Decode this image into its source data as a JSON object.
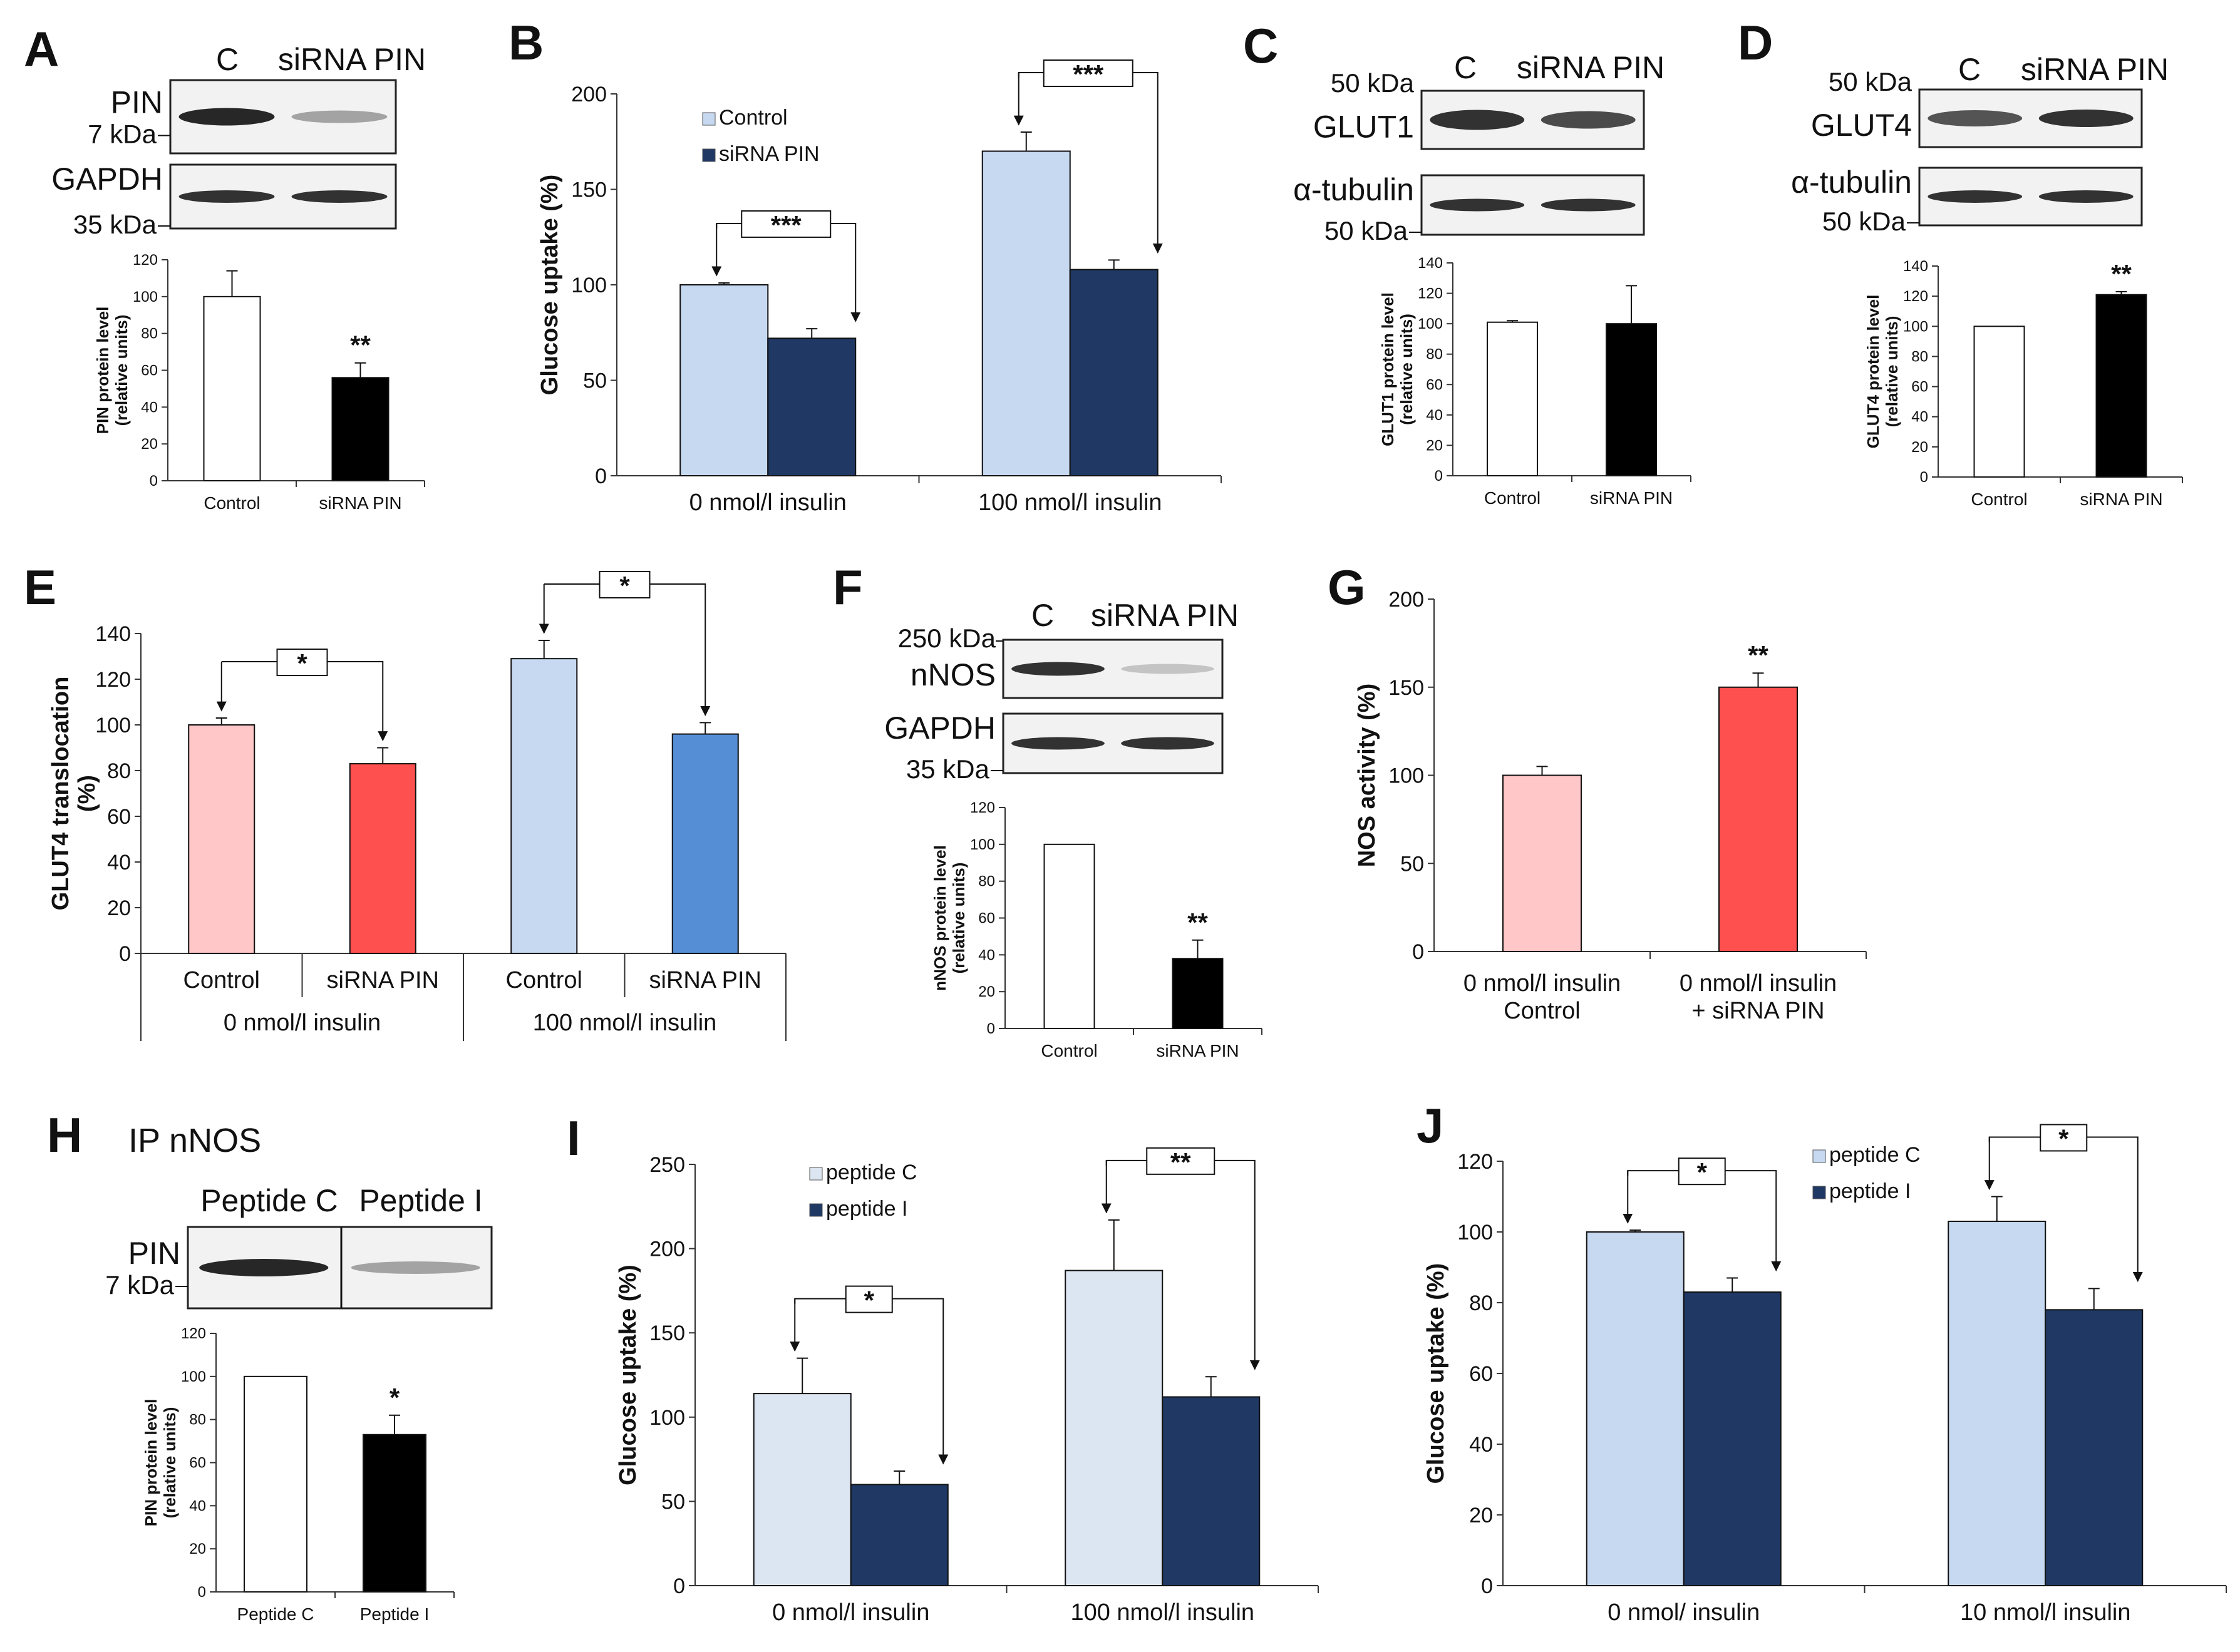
{
  "chart_data": [
    {
      "id": "A",
      "type": "bar",
      "panel_label": "A",
      "blot": {
        "lanes": [
          "C",
          "siRNA PIN"
        ],
        "rows": [
          {
            "name": "PIN",
            "marker": "7 kDa"
          },
          {
            "name": "GAPDH",
            "marker": "35 kDa"
          }
        ]
      },
      "ylabel": "PIN protein level\n(relative units)",
      "ylim": [
        0,
        120
      ],
      "yticks": [
        0,
        20,
        40,
        60,
        80,
        100,
        120
      ],
      "categories": [
        "Control",
        "siRNA PIN"
      ],
      "values": [
        100,
        56
      ],
      "errors": [
        14,
        8
      ],
      "colors": [
        "#ffffff",
        "#000000"
      ],
      "annotations": [
        {
          "bar": 1,
          "text": "**"
        }
      ]
    },
    {
      "id": "B",
      "type": "bar",
      "panel_label": "B",
      "ylabel": "Glucose uptake (%)",
      "ylim": [
        0,
        200
      ],
      "yticks": [
        0,
        50,
        100,
        150,
        200
      ],
      "categories": [
        "0 nmol/l insulin",
        "100 nmol/l insulin"
      ],
      "series": [
        {
          "name": "Control",
          "color": "#c6d9f1",
          "values": [
            100,
            170
          ],
          "errors": [
            1,
            10
          ]
        },
        {
          "name": "siRNA PIN",
          "color": "#1f3864",
          "values": [
            72,
            108
          ],
          "errors": [
            5,
            5
          ]
        }
      ],
      "comparisons": [
        {
          "group": 0,
          "text": "***"
        },
        {
          "group": 1,
          "text": "***"
        }
      ]
    },
    {
      "id": "C",
      "type": "bar",
      "panel_label": "C",
      "blot": {
        "lanes": [
          "C",
          "siRNA PIN"
        ],
        "rows": [
          {
            "name": "GLUT1",
            "marker": "50 kDa"
          },
          {
            "name": "α-tubulin",
            "marker": "50 kDa"
          }
        ]
      },
      "ylabel": "GLUT1 protein level\n(relative units)",
      "ylim": [
        0,
        140
      ],
      "yticks": [
        0,
        20,
        40,
        60,
        80,
        100,
        120,
        140
      ],
      "categories": [
        "Control",
        "siRNA PIN"
      ],
      "values": [
        101,
        100
      ],
      "errors": [
        1,
        25
      ],
      "colors": [
        "#ffffff",
        "#000000"
      ],
      "annotations": []
    },
    {
      "id": "D",
      "type": "bar",
      "panel_label": "D",
      "blot": {
        "lanes": [
          "C",
          "siRNA PIN"
        ],
        "rows": [
          {
            "name": "GLUT4",
            "marker": "50 kDa"
          },
          {
            "name": "α-tubulin",
            "marker": "50 kDa"
          }
        ]
      },
      "ylabel": "GLUT4 protein level\n(relative units)",
      "ylim": [
        0,
        140
      ],
      "yticks": [
        0,
        20,
        40,
        60,
        80,
        100,
        120,
        140
      ],
      "categories": [
        "Control",
        "siRNA PIN"
      ],
      "values": [
        100,
        121
      ],
      "errors": [
        0,
        2
      ],
      "colors": [
        "#ffffff",
        "#000000"
      ],
      "annotations": [
        {
          "bar": 1,
          "text": "**"
        }
      ]
    },
    {
      "id": "E",
      "type": "bar",
      "panel_label": "E",
      "ylabel": "GLUT4 translocation\n(%)",
      "ylim": [
        0,
        140
      ],
      "yticks": [
        0,
        20,
        40,
        60,
        80,
        100,
        120,
        140
      ],
      "categories": [
        "Control",
        "siRNA PIN",
        "Control",
        "siRNA PIN"
      ],
      "groups": [
        "0 nmol/l insulin",
        "100 nmol/l insulin"
      ],
      "values": [
        100,
        83,
        129,
        96
      ],
      "errors": [
        3,
        7,
        8,
        5
      ],
      "colors": [
        "#ffc7c7",
        "#ff5050",
        "#c6d9f1",
        "#558ed5"
      ],
      "comparisons": [
        {
          "bars": [
            0,
            1
          ],
          "text": "*"
        },
        {
          "bars": [
            2,
            3
          ],
          "text": "*"
        }
      ]
    },
    {
      "id": "F",
      "type": "bar",
      "panel_label": "F",
      "blot": {
        "lanes": [
          "C",
          "siRNA PIN"
        ],
        "rows": [
          {
            "name": "nNOS",
            "marker": "250 kDa"
          },
          {
            "name": "GAPDH",
            "marker": "35 kDa"
          }
        ]
      },
      "ylabel": "nNOS protein level\n(relative units)",
      "ylim": [
        0,
        120
      ],
      "yticks": [
        0,
        20,
        40,
        60,
        80,
        100,
        120
      ],
      "categories": [
        "Control",
        "siRNA PIN"
      ],
      "values": [
        100,
        38
      ],
      "errors": [
        0,
        10
      ],
      "colors": [
        "#ffffff",
        "#000000"
      ],
      "annotations": [
        {
          "bar": 1,
          "text": "**"
        }
      ]
    },
    {
      "id": "G",
      "type": "bar",
      "panel_label": "G",
      "ylabel": "NOS activity (%)",
      "ylim": [
        0,
        200
      ],
      "yticks": [
        0,
        50,
        100,
        150,
        200
      ],
      "categories": [
        "0 nmol/l insulin\nControl",
        "0 nmol/l insulin\n+ siRNA PIN"
      ],
      "values": [
        100,
        150
      ],
      "errors": [
        5,
        8
      ],
      "colors": [
        "#ffc7c7",
        "#ff5050"
      ],
      "annotations": [
        {
          "bar": 1,
          "text": "**"
        }
      ]
    },
    {
      "id": "H",
      "type": "bar",
      "panel_label": "H",
      "header": "IP nNOS",
      "blot": {
        "lanes": [
          "Peptide C",
          "Peptide I"
        ],
        "rows": [
          {
            "name": "PIN",
            "marker": "7 kDa"
          }
        ]
      },
      "ylabel": "PIN protein level\n(relative units)",
      "ylim": [
        0,
        120
      ],
      "yticks": [
        0,
        20,
        40,
        60,
        80,
        100,
        120
      ],
      "categories": [
        "Peptide C",
        "Peptide I"
      ],
      "values": [
        100,
        73
      ],
      "errors": [
        0,
        9
      ],
      "colors": [
        "#ffffff",
        "#000000"
      ],
      "annotations": [
        {
          "bar": 1,
          "text": "*"
        }
      ]
    },
    {
      "id": "I",
      "type": "bar",
      "panel_label": "I",
      "ylabel": "Glucose uptake (%)",
      "ylim": [
        0,
        250
      ],
      "yticks": [
        0,
        50,
        100,
        150,
        200,
        250
      ],
      "categories": [
        "0 nmol/l insulin",
        "100 nmol/l insulin"
      ],
      "series": [
        {
          "name": "peptide C",
          "color": "#dce6f2",
          "values": [
            114,
            187
          ],
          "errors": [
            21,
            30
          ]
        },
        {
          "name": "peptide I",
          "color": "#1f3864",
          "values": [
            60,
            112
          ],
          "errors": [
            8,
            12
          ]
        }
      ],
      "comparisons": [
        {
          "group": 0,
          "text": "*"
        },
        {
          "group": 1,
          "text": "**"
        }
      ]
    },
    {
      "id": "J",
      "type": "bar",
      "panel_label": "J",
      "ylabel": "Glucose uptake (%)",
      "ylim": [
        0,
        120
      ],
      "yticks": [
        0,
        20,
        40,
        60,
        80,
        100,
        120
      ],
      "categories": [
        "0 nmol/ insulin",
        "10 nmol/l insulin"
      ],
      "series": [
        {
          "name": "peptide C",
          "color": "#c6d9f1",
          "values": [
            100,
            103
          ],
          "errors": [
            0.5,
            7
          ]
        },
        {
          "name": "peptide I",
          "color": "#1f3864",
          "values": [
            83,
            78
          ],
          "errors": [
            4,
            6
          ]
        }
      ],
      "comparisons": [
        {
          "group": 0,
          "text": "*"
        },
        {
          "group": 1,
          "text": "*"
        }
      ]
    }
  ]
}
